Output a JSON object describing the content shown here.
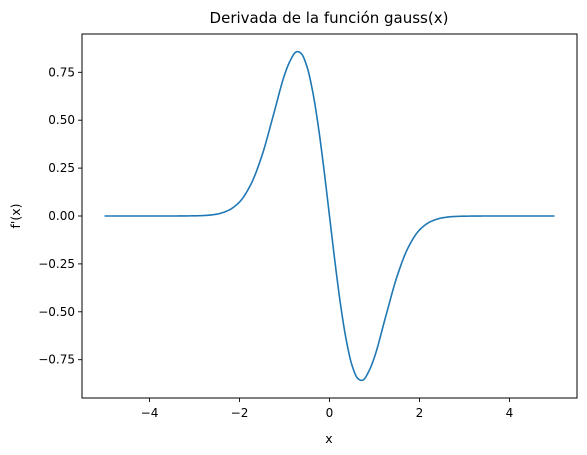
{
  "chart_data": {
    "type": "line",
    "title": "Derivada de la función gauss(x)",
    "xlabel": "x",
    "ylabel": "f'(x)",
    "xlim": [
      -5.5,
      5.5
    ],
    "ylim": [
      -0.95,
      0.95
    ],
    "x_ticks": [
      -4,
      -2,
      0,
      2,
      4
    ],
    "x_tick_labels": [
      "−4",
      "−2",
      "0",
      "2",
      "4"
    ],
    "y_ticks": [
      0.75,
      0.5,
      0.25,
      0.0,
      -0.25,
      -0.5,
      -0.75
    ],
    "y_tick_labels": [
      "0.75",
      "0.50",
      "0.25",
      "0.00",
      "−0.25",
      "−0.50",
      "−0.75"
    ],
    "grid": false,
    "series": [
      {
        "color": "#1f77b4",
        "x": [
          -5.0,
          -4.5,
          -4.0,
          -3.5,
          -3.0,
          -2.75,
          -2.5,
          -2.25,
          -2.0,
          -1.75,
          -1.5,
          -1.25,
          -1.0,
          -0.875,
          -0.75,
          -0.707,
          -0.625,
          -0.5,
          -0.375,
          -0.25,
          -0.125,
          0.0,
          0.125,
          0.25,
          0.375,
          0.5,
          0.625,
          0.707,
          0.75,
          0.875,
          1.0,
          1.25,
          1.5,
          1.75,
          2.0,
          2.25,
          2.5,
          2.75,
          3.0,
          3.5,
          4.0,
          4.5,
          5.0
        ],
        "y": [
          0.0,
          0.0,
          0.0,
          0.0,
          0.001,
          0.003,
          0.01,
          0.029,
          0.073,
          0.164,
          0.316,
          0.524,
          0.736,
          0.81,
          0.855,
          0.858,
          0.847,
          0.779,
          0.651,
          0.47,
          0.246,
          0.0,
          -0.246,
          -0.47,
          -0.651,
          -0.779,
          -0.847,
          -0.858,
          -0.855,
          -0.81,
          -0.736,
          -0.524,
          -0.316,
          -0.164,
          -0.073,
          -0.029,
          -0.01,
          -0.003,
          -0.001,
          0.0,
          0.0,
          0.0,
          0.0
        ]
      }
    ]
  }
}
